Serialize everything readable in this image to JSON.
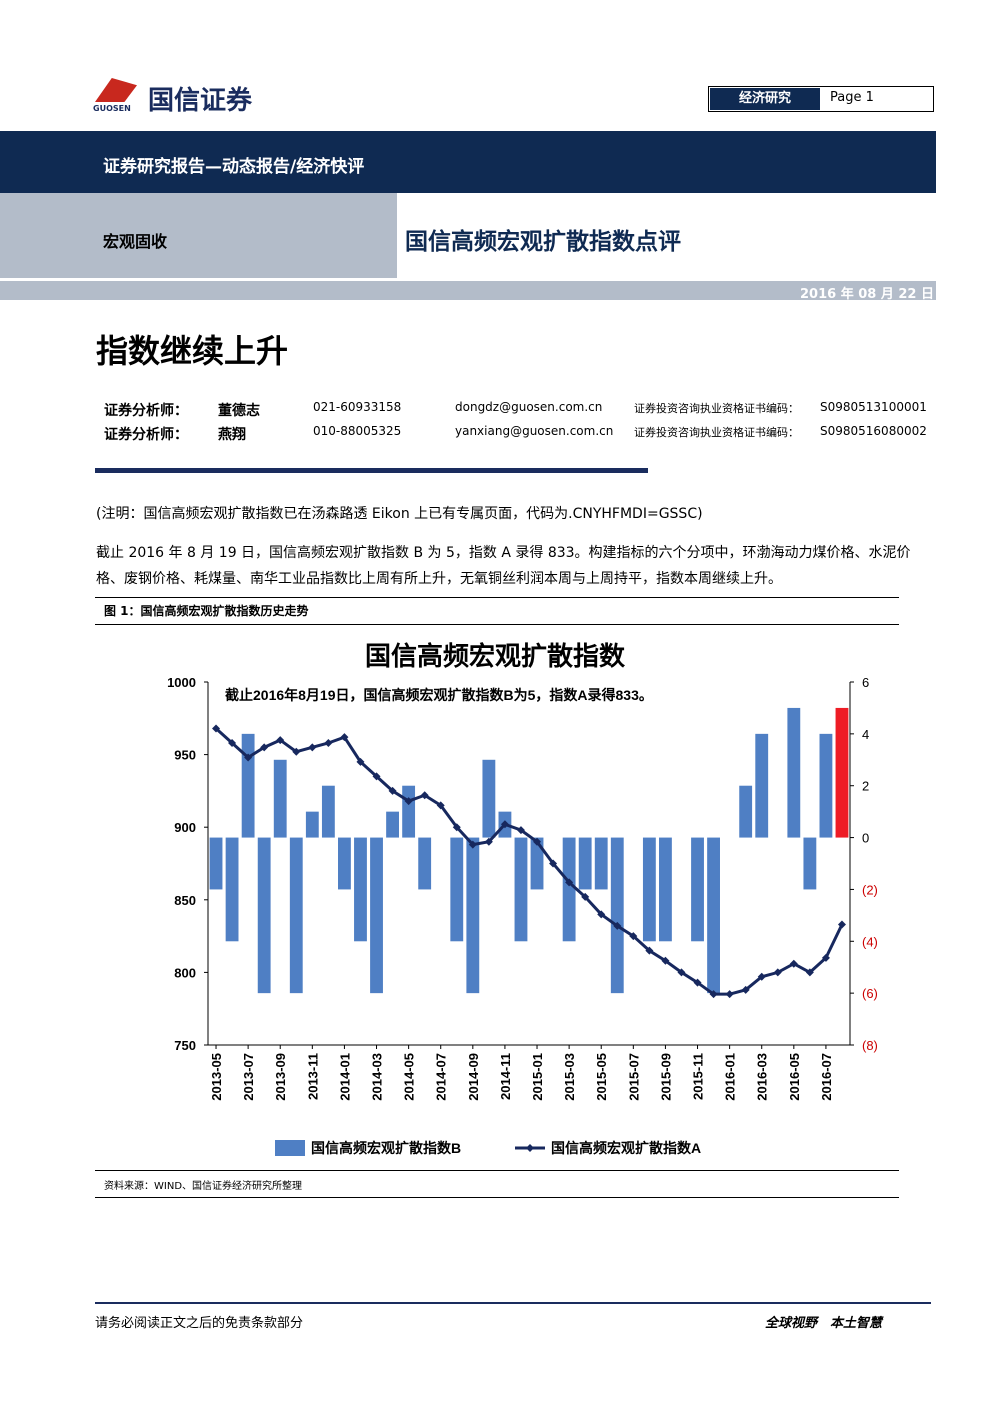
{
  "header": {
    "logo_text": "国信证券",
    "logo_sub": "GUOSEN",
    "section": "经济研究",
    "page_label": "Page",
    "page_number": "1",
    "band": "证券研究报告—动态报告/经济快评",
    "category": "宏观固收",
    "report_title": "国信高频宏观扩散指数点评",
    "date": "2016 年 08 月 22 日"
  },
  "headline": "指数继续上升",
  "analysts": [
    [
      "证券分析师：",
      "董德志",
      "021-60933158",
      "dongdz@guosen.com.cn",
      "证券投资咨询执业资格证书编码：",
      "S0980513100001"
    ],
    [
      "证券分析师：",
      "燕翔",
      "010-88005325",
      "yanxiang@guosen.com.cn",
      "证券投资咨询执业资格证书编码：",
      "S0980516080002"
    ]
  ],
  "note": "(注明：国信高频宏观扩散指数已在汤森路透 Eikon 上已有专属页面，代码为.CNYHFMDI=GSSC)",
  "paragraph": "截止 2016 年 8 月 19 日，国信高频宏观扩散指数 B 为 5，指数 A 录得 833。构建指标的六个分项中，环渤海动力煤价格、水泥价格、废钢价格、耗煤量、南华工业品指数比上周有所上升，无氧铜丝利润本周与上周持平，指数本周继续上升。",
  "figure_caption": "图 1：国信高频宏观扩散指数历史走势",
  "source": "资料来源：WIND、国信证券经济研究所整理",
  "footer": {
    "left": "请务必阅读正文之后的免责条款部分",
    "right": "全球视野　本土智慧"
  },
  "chart_data": {
    "type": "combo",
    "title": "国信高频宏观扩散指数",
    "annotation": "截止2016年8月19日，国信高频宏观扩散指数B为5，指数A录得833。",
    "x": [
      "2013-05",
      null,
      "2013-07",
      null,
      "2013-09",
      null,
      "2013-11",
      null,
      "2014-01",
      null,
      "2014-03",
      null,
      "2014-05",
      null,
      "2014-07",
      null,
      "2014-09",
      null,
      "2014-11",
      null,
      "2015-01",
      null,
      "2015-03",
      null,
      "2015-05",
      null,
      "2015-07",
      null,
      "2015-09",
      null,
      "2015-11",
      null,
      "2016-01",
      null,
      "2016-03",
      null,
      "2016-05",
      null,
      "2016-07",
      null
    ],
    "series": [
      {
        "name": "国信高频宏观扩散指数B",
        "axis": "y2",
        "kind": "bar",
        "color": "#4f7fc4",
        "colors": [
          "#4f7fc4",
          "#4f7fc4",
          "#4f7fc4",
          "#4f7fc4",
          "#4f7fc4",
          "#4f7fc4",
          "#4f7fc4",
          "#4f7fc4",
          "#4f7fc4",
          "#4f7fc4",
          "#4f7fc4",
          "#4f7fc4",
          "#4f7fc4",
          "#4f7fc4",
          "#4f7fc4",
          "#4f7fc4",
          "#4f7fc4",
          "#4f7fc4",
          "#4f7fc4",
          "#4f7fc4",
          "#4f7fc4",
          "#4f7fc4",
          "#4f7fc4",
          "#4f7fc4",
          "#4f7fc4",
          "#4f7fc4",
          "#4f7fc4",
          "#4f7fc4",
          "#4f7fc4",
          "#4f7fc4",
          "#4f7fc4",
          "#4f7fc4",
          "#4f7fc4",
          "#4f7fc4",
          "#4f7fc4",
          "#4f7fc4",
          "#4f7fc4",
          "#4f7fc4",
          "#4f7fc4",
          "#ee1c25"
        ],
        "values": [
          -2,
          -4,
          4,
          -6,
          3,
          -6,
          1,
          2,
          -2,
          -4,
          -6,
          1,
          2,
          -2,
          0,
          -4,
          -6,
          3,
          1,
          -4,
          -2,
          0,
          -4,
          -2,
          -2,
          -6,
          0,
          -4,
          -4,
          0,
          -4,
          -6,
          0,
          2,
          4,
          0,
          5,
          -2,
          4,
          5
        ]
      },
      {
        "name": "国信高频宏观扩散指数A",
        "kind": "line",
        "color": "#17285e",
        "values": [
          968,
          958,
          948,
          955,
          960,
          952,
          955,
          958,
          962,
          945,
          935,
          925,
          918,
          922,
          915,
          900,
          888,
          890,
          902,
          898,
          890,
          875,
          862,
          852,
          840,
          832,
          825,
          815,
          808,
          800,
          793,
          785,
          785,
          788,
          797,
          800,
          806,
          800,
          810,
          833
        ]
      }
    ],
    "ylim": [
      750,
      1000
    ],
    "yticks": [
      750,
      800,
      850,
      900,
      950,
      1000
    ],
    "y2lim": [
      -8,
      6
    ],
    "y2ticks": [
      {
        "value": -8,
        "label": "(8)"
      },
      {
        "value": -6,
        "label": "(6)"
      },
      {
        "value": -4,
        "label": "(4)"
      },
      {
        "value": -2,
        "label": "(2)"
      },
      0,
      2,
      4,
      6
    ]
  }
}
